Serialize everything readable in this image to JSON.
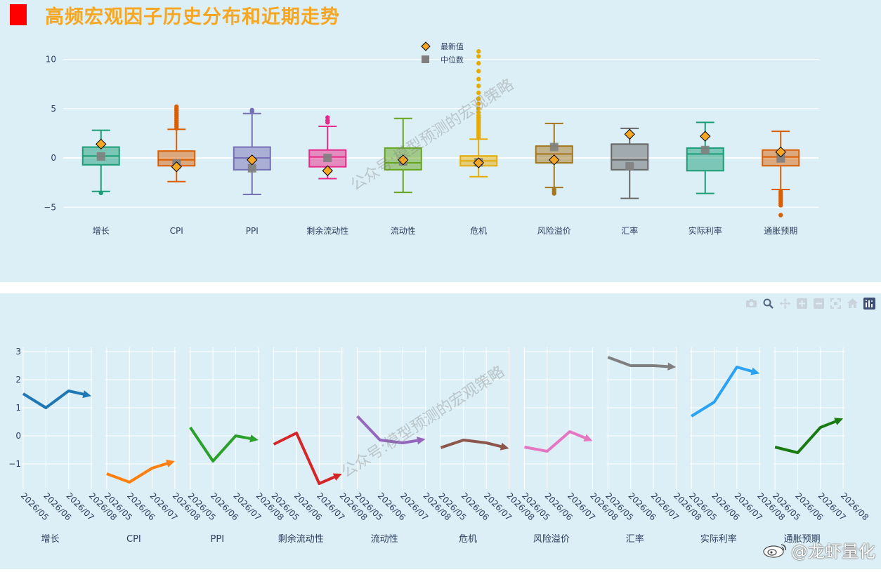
{
  "title": "高频宏观因子历史分布和近期走势",
  "watermark": "公众号:模型预测的宏观策略",
  "brand": "@龙虾量化",
  "colors": {
    "panel_bg": "#ddeff6",
    "latest_marker": "#f5a623",
    "median_marker": "#7f7f7f"
  },
  "toolbar_icons": [
    "camera-icon",
    "zoom-icon",
    "pan-icon",
    "zoom-in-icon",
    "zoom-out-icon",
    "autoscale-icon",
    "reset-axes-icon",
    "plotly-logo-icon"
  ],
  "chart_data": [
    {
      "type": "box",
      "legend": [
        "最新值",
        "中位数"
      ],
      "ylim": [
        -7,
        11
      ],
      "yticks": [
        10,
        5,
        0,
        -5
      ],
      "yticklabels": [
        "10",
        "5",
        "0",
        "−5"
      ],
      "categories": [
        "增长",
        "CPI",
        "PPI",
        "剩余流动性",
        "流动性",
        "危机",
        "风险溢价",
        "汇率",
        "实际利率",
        "通胀预期"
      ],
      "boxes": [
        {
          "name": "增长",
          "color": "#1b9e77",
          "whisker_low": -3.4,
          "q1": -0.7,
          "median": 0.2,
          "q3": 1.1,
          "whisker_high": 2.8,
          "outliers": [
            -3.55
          ],
          "latest": 1.4,
          "median_marker": 0.15
        },
        {
          "name": "CPI",
          "color": "#d95f02",
          "whisker_low": -2.4,
          "q1": -0.8,
          "median": -0.2,
          "q3": 0.7,
          "whisker_high": 2.9,
          "outliers": [
            3.0,
            3.2,
            3.4,
            3.6,
            3.8,
            4.0,
            4.2,
            4.4,
            4.6,
            4.8,
            5.0,
            5.2
          ],
          "latest": -0.9,
          "median_marker": -0.55
        },
        {
          "name": "PPI",
          "color": "#7570b3",
          "whisker_low": -3.7,
          "q1": -1.2,
          "median": 0.0,
          "q3": 1.1,
          "whisker_high": 4.5,
          "outliers": [
            4.7,
            4.85
          ],
          "latest": -0.2,
          "median_marker": -1.05
        },
        {
          "name": "剩余流动性",
          "color": "#e7298a",
          "whisker_low": -2.1,
          "q1": -0.9,
          "median": 0.1,
          "q3": 0.8,
          "whisker_high": 3.2,
          "outliers": [
            3.6,
            3.8,
            4.1
          ],
          "latest": -1.3,
          "median_marker": 0.0
        },
        {
          "name": "流动性",
          "color": "#66a61e",
          "whisker_low": -3.5,
          "q1": -1.2,
          "median": -0.5,
          "q3": 1.0,
          "whisker_high": 4.0,
          "outliers": [],
          "latest": -0.2,
          "median_marker": -0.35
        },
        {
          "name": "危机",
          "color": "#e6ab02",
          "whisker_low": -1.9,
          "q1": -0.8,
          "median": -0.3,
          "q3": 0.2,
          "whisker_high": 1.9,
          "outliers": [
            2.1,
            2.3,
            2.5,
            2.7,
            2.9,
            3.1,
            3.3,
            3.5,
            3.7,
            3.9,
            4.1,
            4.3,
            4.6,
            5.0,
            5.5,
            6.0,
            6.6,
            7.3,
            8.0,
            8.8,
            9.6,
            10.3,
            10.8
          ],
          "latest": -0.5,
          "median_marker": -0.45
        },
        {
          "name": "风险溢价",
          "color": "#a6761d",
          "whisker_low": -3.0,
          "q1": -0.5,
          "median": 0.4,
          "q3": 1.2,
          "whisker_high": 3.5,
          "outliers": [
            -3.2,
            -3.4,
            -3.6
          ],
          "latest": -0.2,
          "median_marker": 1.1
        },
        {
          "name": "汇率",
          "color": "#666666",
          "whisker_low": -4.1,
          "q1": -1.2,
          "median": -0.2,
          "q3": 1.4,
          "whisker_high": 3.0,
          "outliers": [],
          "latest": 2.4,
          "median_marker": -0.85
        },
        {
          "name": "实际利率",
          "color": "#1b9e77",
          "whisker_low": -3.6,
          "q1": -1.3,
          "median": 0.4,
          "q3": 1.0,
          "whisker_high": 3.6,
          "outliers": [],
          "latest": 2.2,
          "median_marker": 0.8
        },
        {
          "name": "通胀预期",
          "color": "#d95f02",
          "whisker_low": -3.2,
          "q1": -0.8,
          "median": 0.1,
          "q3": 0.8,
          "whisker_high": 2.7,
          "outliers": [
            -3.4,
            -3.6,
            -3.8,
            -4.0,
            -4.2,
            -4.4,
            -4.6,
            -4.8,
            -5.8
          ],
          "latest": 0.6,
          "median_marker": -0.05
        }
      ]
    },
    {
      "type": "line",
      "ylim": [
        -1.9,
        3.2
      ],
      "yticks": [
        3,
        2,
        1,
        0,
        -1
      ],
      "x": [
        "2026/05",
        "2026/06",
        "2026/07",
        "2026/08"
      ],
      "series": [
        {
          "name": "增长",
          "color": "#1f77b4",
          "values": [
            1.5,
            1.0,
            1.6,
            1.42
          ]
        },
        {
          "name": "CPI",
          "color": "#ff7f0e",
          "values": [
            -1.35,
            -1.65,
            -1.15,
            -0.9
          ]
        },
        {
          "name": "PPI",
          "color": "#2ca02c",
          "values": [
            0.3,
            -0.9,
            0.0,
            -0.15
          ]
        },
        {
          "name": "剩余流动性",
          "color": "#d62728",
          "values": [
            -0.3,
            0.1,
            -1.7,
            -1.35
          ]
        },
        {
          "name": "流动性",
          "color": "#9467bd",
          "values": [
            0.7,
            -0.15,
            -0.25,
            -0.12
          ]
        },
        {
          "name": "危机",
          "color": "#8c564b",
          "values": [
            -0.42,
            -0.15,
            -0.25,
            -0.45
          ]
        },
        {
          "name": "风险溢价",
          "color": "#e377c2",
          "values": [
            -0.4,
            -0.55,
            0.15,
            -0.18
          ]
        },
        {
          "name": "汇率",
          "color": "#7f7f7f",
          "values": [
            2.8,
            2.5,
            2.5,
            2.45
          ]
        },
        {
          "name": "实际利率",
          "color": "#2ca2f5",
          "values": [
            0.7,
            1.2,
            2.45,
            2.22
          ]
        },
        {
          "name": "通胀预期",
          "color": "#1a7a12",
          "values": [
            -0.4,
            -0.6,
            0.3,
            0.62
          ]
        }
      ]
    }
  ]
}
